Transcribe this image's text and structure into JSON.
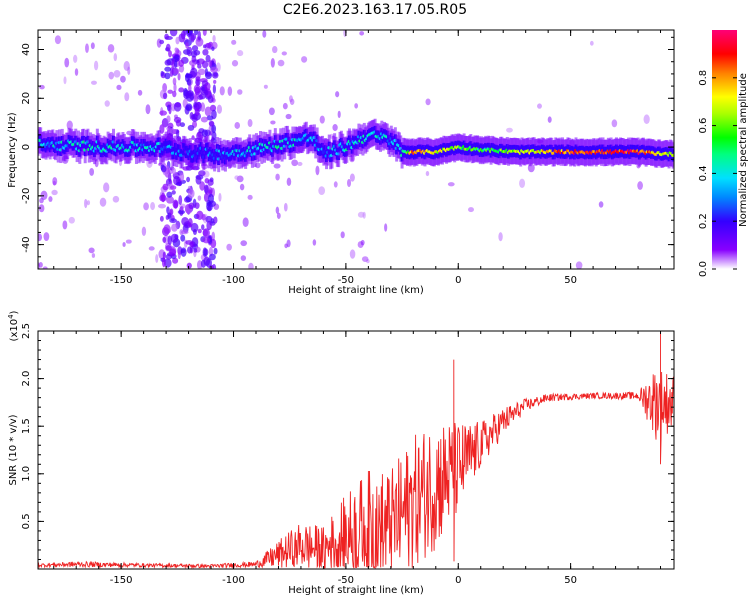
{
  "title": "C2E6.2023.163.17.05.R05",
  "chart_data": [
    {
      "type": "heatmap",
      "xlabel": "Height of straight line (km)",
      "ylabel": "Frequency (Hz)",
      "xlim": [
        -187,
        96
      ],
      "ylim": [
        -50,
        48
      ],
      "xticks": [
        -150,
        -100,
        -50,
        0,
        50
      ],
      "yticks": [
        -40,
        -20,
        0,
        20,
        40
      ],
      "colorbar": {
        "label": "Normalized spectral amplitude",
        "range": [
          0.0,
          1.0
        ],
        "ticks": [
          0.0,
          0.2,
          0.4,
          0.6,
          0.8
        ],
        "tick_labels": [
          "0.0",
          "0.2",
          "0.4",
          "0.6",
          "0.8"
        ],
        "colormap": "rainbow"
      },
      "ridge": [
        {
          "x": -185,
          "y": 1,
          "amp": 0.35
        },
        {
          "x": -170,
          "y": 0.5,
          "amp": 0.4
        },
        {
          "x": -150,
          "y": 0,
          "amp": 0.4
        },
        {
          "x": -135,
          "y": 0,
          "amp": 0.35
        },
        {
          "x": -120,
          "y": -2,
          "amp": 0.2
        },
        {
          "x": -105,
          "y": -3,
          "amp": 0.3
        },
        {
          "x": -90,
          "y": -1,
          "amp": 0.4
        },
        {
          "x": -75,
          "y": 2,
          "amp": 0.4
        },
        {
          "x": -65,
          "y": 4,
          "amp": 0.35
        },
        {
          "x": -60,
          "y": -3,
          "amp": 0.3
        },
        {
          "x": -50,
          "y": 0,
          "amp": 0.4
        },
        {
          "x": -40,
          "y": 5,
          "amp": 0.4
        },
        {
          "x": -30,
          "y": 3,
          "amp": 0.35
        },
        {
          "x": -25,
          "y": -2,
          "amp": 0.4
        },
        {
          "x": -20,
          "y": -2,
          "amp": 0.8
        },
        {
          "x": -10,
          "y": -2,
          "amp": 0.7
        },
        {
          "x": 0,
          "y": 0,
          "amp": 0.6
        },
        {
          "x": 10,
          "y": -1,
          "amp": 0.5
        },
        {
          "x": 25,
          "y": -2,
          "amp": 0.65
        },
        {
          "x": 50,
          "y": -2,
          "amp": 0.85
        },
        {
          "x": 80,
          "y": -2,
          "amp": 0.9
        },
        {
          "x": 96,
          "y": -3,
          "amp": 0.6
        }
      ],
      "vertical_band": {
        "x_from": -132,
        "x_to": -108,
        "amp": 0.15
      }
    },
    {
      "type": "line",
      "xlabel": "Height of straight line (km)",
      "ylabel": "SNR (10 * v/v)",
      "y_multiplier": "(x10^4)",
      "xlim": [
        -187,
        96
      ],
      "ylim": [
        0,
        2.5
      ],
      "xticks": [
        -150,
        -100,
        -50,
        0,
        50
      ],
      "yticks": [
        0.5,
        1.0,
        1.5,
        2.0,
        2.5
      ],
      "series": [
        {
          "color": "#ee2222",
          "envelope": [
            {
              "x": -187,
              "mean": 0.04,
              "noise": 0.02
            },
            {
              "x": -170,
              "mean": 0.05,
              "noise": 0.03
            },
            {
              "x": -140,
              "mean": 0.04,
              "noise": 0.02
            },
            {
              "x": -110,
              "mean": 0.03,
              "noise": 0.02
            },
            {
              "x": -90,
              "mean": 0.05,
              "noise": 0.03
            },
            {
              "x": -80,
              "mean": 0.15,
              "noise": 0.15
            },
            {
              "x": -70,
              "mean": 0.25,
              "noise": 0.25
            },
            {
              "x": -60,
              "mean": 0.2,
              "noise": 0.25
            },
            {
              "x": -50,
              "mean": 0.35,
              "noise": 0.45
            },
            {
              "x": -40,
              "mean": 0.45,
              "noise": 0.6
            },
            {
              "x": -30,
              "mean": 0.45,
              "noise": 0.6
            },
            {
              "x": -20,
              "mean": 0.7,
              "noise": 0.7
            },
            {
              "x": -10,
              "mean": 0.9,
              "noise": 0.7
            },
            {
              "x": 0,
              "mean": 1.05,
              "noise": 0.5
            },
            {
              "x": 10,
              "mean": 1.3,
              "noise": 0.25
            },
            {
              "x": 20,
              "mean": 1.55,
              "noise": 0.15
            },
            {
              "x": 30,
              "mean": 1.72,
              "noise": 0.07
            },
            {
              "x": 40,
              "mean": 1.8,
              "noise": 0.04
            },
            {
              "x": 60,
              "mean": 1.82,
              "noise": 0.03
            },
            {
              "x": 80,
              "mean": 1.82,
              "noise": 0.04
            },
            {
              "x": 88,
              "mean": 1.75,
              "noise": 0.4
            },
            {
              "x": 96,
              "mean": 1.75,
              "noise": 0.3
            }
          ],
          "spikes": [
            {
              "x": -2,
              "y": 2.2
            },
            {
              "x": -2,
              "y": 0.08
            },
            {
              "x": 90,
              "y": 2.5
            },
            {
              "x": 90,
              "y": 1.1
            }
          ]
        }
      ]
    }
  ]
}
